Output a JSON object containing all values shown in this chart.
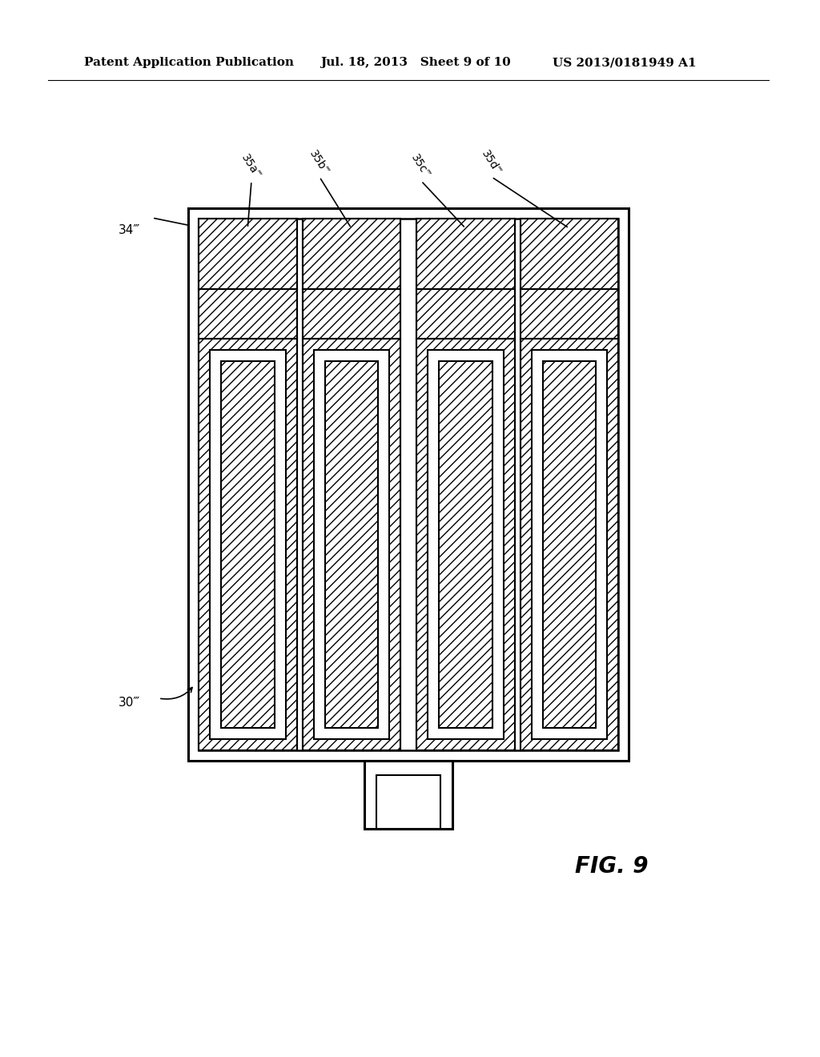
{
  "header_left": "Patent Application Publication",
  "header_mid": "Jul. 18, 2013   Sheet 9 of 10",
  "header_right": "US 2013/0181949 A1",
  "fig_label": "FIG. 9",
  "label_34": "34‴",
  "label_30": "30‴",
  "label_35a": "35a‴",
  "label_35b": "35b‴",
  "label_35c": "35c‴",
  "label_35d": "35d‴",
  "bg_color": "#ffffff",
  "line_color": "#000000"
}
